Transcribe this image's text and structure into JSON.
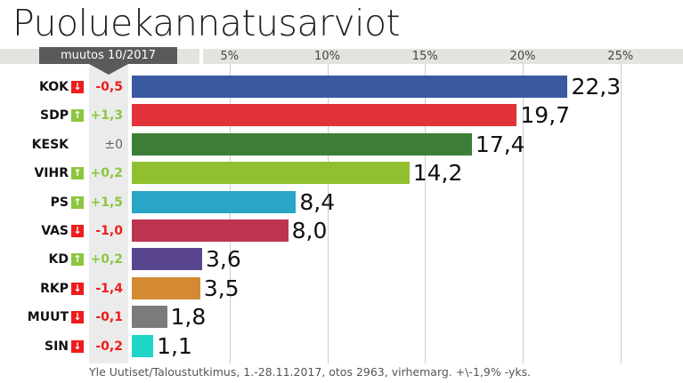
{
  "title": "Puoluekannatusarviot",
  "change_header": "muutos 10/2017",
  "source": "Yle Uutiset/Taloustutkimus, 1.-28.11.2017, otos 2963, virhemarg. +\\-1,9% -yks.",
  "chart_data": {
    "type": "bar",
    "orientation": "horizontal",
    "xlim": [
      0,
      25
    ],
    "ticks": [
      5,
      10,
      15,
      20,
      25
    ],
    "tick_labels": [
      "5%",
      "10%",
      "15%",
      "20%",
      "25%"
    ],
    "grid": true,
    "categories": [
      "KOK",
      "SDP",
      "KESK",
      "VIHR",
      "PS",
      "VAS",
      "KD",
      "RKP",
      "MUUT",
      "SIN"
    ],
    "values": [
      22.3,
      19.7,
      17.4,
      14.2,
      8.4,
      8.0,
      3.6,
      3.5,
      1.8,
      1.1
    ],
    "value_labels": [
      "22,3",
      "19,7",
      "17,4",
      "14,2",
      "8,4",
      "8,0",
      "3,6",
      "3,5",
      "1,8",
      "1,1"
    ],
    "changes": [
      "-0,5",
      "+1,3",
      "±0",
      "+0,2",
      "+1,5",
      "-1,0",
      "+0,2",
      "-1,4",
      "-0,1",
      "-0,2"
    ],
    "change_dirs": [
      "down",
      "up",
      "none",
      "up",
      "up",
      "down",
      "up",
      "down",
      "down",
      "down"
    ],
    "colors": [
      "#3a59a0",
      "#e3333a",
      "#3c7e37",
      "#92bf2f",
      "#29a5c5",
      "#bd3450",
      "#5a4590",
      "#d38a33",
      "#7b7b7b",
      "#1fd7c6"
    ],
    "up_color": "#8cc63f",
    "down_color": "#ee1c1c",
    "neutral_color": "#666666"
  }
}
